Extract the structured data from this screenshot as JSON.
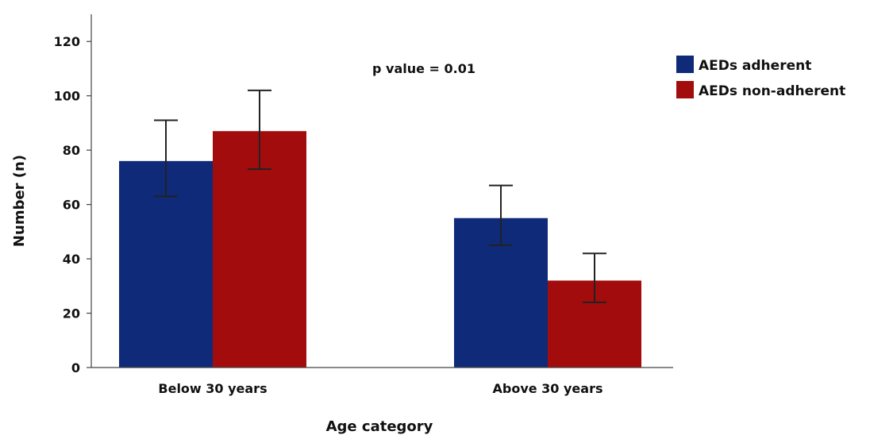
{
  "chart_data": {
    "type": "bar",
    "categories": [
      "Below 30 years",
      "Above 30 years"
    ],
    "series": [
      {
        "name": "AEDs adherent",
        "color": "#0f2a78",
        "values": [
          76,
          55
        ],
        "error_low": [
          63,
          45
        ],
        "error_high": [
          91,
          67
        ]
      },
      {
        "name": "AEDs non-adherent",
        "color": "#a30c0c",
        "values": [
          87,
          32
        ],
        "error_low": [
          73,
          24
        ],
        "error_high": [
          102,
          42
        ]
      }
    ],
    "xlabel": "Age category",
    "ylabel": "Number (n)",
    "ylim": [
      0,
      130
    ],
    "yticks": [
      0,
      20,
      40,
      60,
      80,
      100,
      120
    ],
    "annotation": "p value = 0.01",
    "legend_position": "top-right",
    "grid": false
  }
}
